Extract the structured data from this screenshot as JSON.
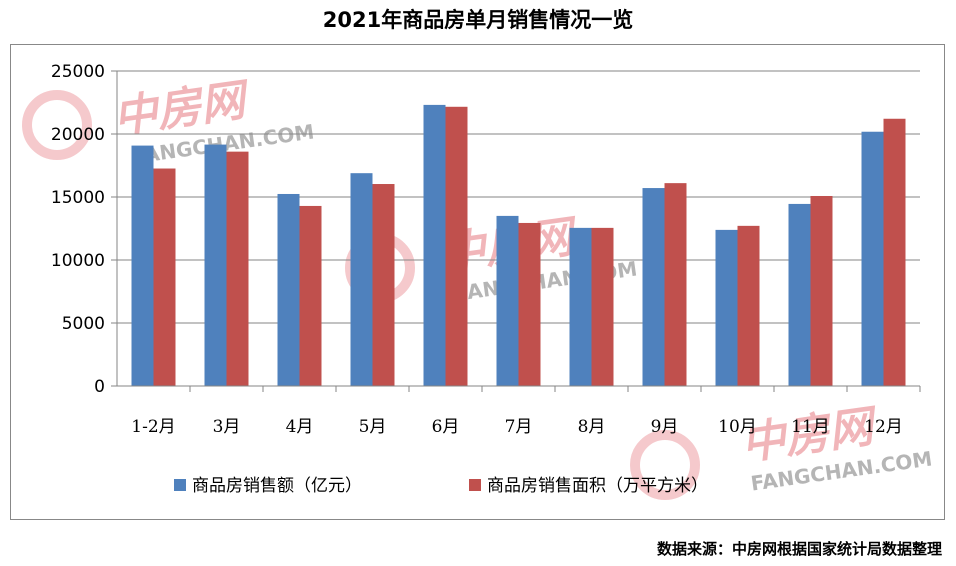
{
  "source_note": "数据来源：中房网根据国家统计局数据整理",
  "watermark": {
    "cn": "中房网",
    "en": "FANGCHAN.COM"
  },
  "chart_data": {
    "type": "bar",
    "title": "2021年商品房单月销售情况一览",
    "xlabel": "",
    "ylabel": "",
    "ylim": [
      0,
      25000
    ],
    "yticks": [
      0,
      5000,
      10000,
      15000,
      20000,
      25000
    ],
    "grid": true,
    "legend_position": "bottom",
    "categories": [
      "1-2月",
      "3月",
      "4月",
      "5月",
      "6月",
      "7月",
      "8月",
      "9月",
      "10月",
      "11月",
      "12月"
    ],
    "series": [
      {
        "name": "商品房销售额（亿元）",
        "color": "#4f81bd",
        "values": [
          19080,
          19160,
          15240,
          16890,
          22310,
          13500,
          12550,
          15710,
          12390,
          14450,
          20180
        ]
      },
      {
        "name": "商品房销售面积（万平方米）",
        "color": "#c0504d",
        "values": [
          17260,
          18600,
          14290,
          16030,
          22160,
          12940,
          12550,
          16100,
          12710,
          15080,
          21210
        ]
      }
    ]
  }
}
